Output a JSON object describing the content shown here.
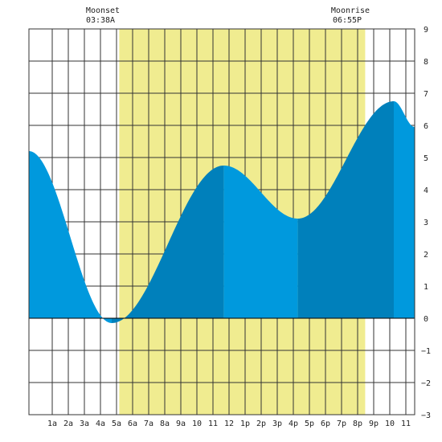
{
  "annotations": {
    "moonset": {
      "label": "Moonset",
      "time": "03:38A"
    },
    "moonrise": {
      "label": "Moonrise",
      "time": "06:55P"
    }
  },
  "chart_data": {
    "type": "area",
    "title": "",
    "xlabel": "",
    "ylabel": "",
    "xlim": [
      -0.45,
      23.55
    ],
    "ylim": [
      -3,
      9
    ],
    "grid": true,
    "x_ticks": [
      {
        "h": 1,
        "label": "1a"
      },
      {
        "h": 2,
        "label": "2a"
      },
      {
        "h": 3,
        "label": "3a"
      },
      {
        "h": 4,
        "label": "4a"
      },
      {
        "h": 5,
        "label": "5a"
      },
      {
        "h": 6,
        "label": "6a"
      },
      {
        "h": 7,
        "label": "7a"
      },
      {
        "h": 8,
        "label": "8a"
      },
      {
        "h": 9,
        "label": "9a"
      },
      {
        "h": 10,
        "label": "10"
      },
      {
        "h": 11,
        "label": "11"
      },
      {
        "h": 12,
        "label": "12"
      },
      {
        "h": 13,
        "label": "1p"
      },
      {
        "h": 14,
        "label": "2p"
      },
      {
        "h": 15,
        "label": "3p"
      },
      {
        "h": 16,
        "label": "4p"
      },
      {
        "h": 17,
        "label": "5p"
      },
      {
        "h": 18,
        "label": "6p"
      },
      {
        "h": 19,
        "label": "7p"
      },
      {
        "h": 20,
        "label": "8p"
      },
      {
        "h": 21,
        "label": "9p"
      },
      {
        "h": 22,
        "label": "10"
      },
      {
        "h": 23,
        "label": "11"
      }
    ],
    "y_ticks": [
      -3,
      -2,
      -1,
      0,
      1,
      2,
      3,
      4,
      5,
      6,
      7,
      8,
      9
    ],
    "daylight_band": {
      "start": 5.17,
      "end": 20.47
    },
    "extremes": [
      {
        "time": -0.45,
        "height": 5.2
      },
      {
        "time": 4.7,
        "height": -0.15
      },
      {
        "time": 11.67,
        "height": 4.75
      },
      {
        "time": 16.28,
        "height": 3.1
      },
      {
        "time": 22.25,
        "height": 6.75
      },
      {
        "time": 23.55,
        "height": 5.95
      }
    ],
    "colors": {
      "water_light": "#0099dd",
      "water_dark": "#0080bb",
      "daylight": "#f0ec90",
      "grid": "#333333",
      "background": "#ffffff"
    }
  }
}
